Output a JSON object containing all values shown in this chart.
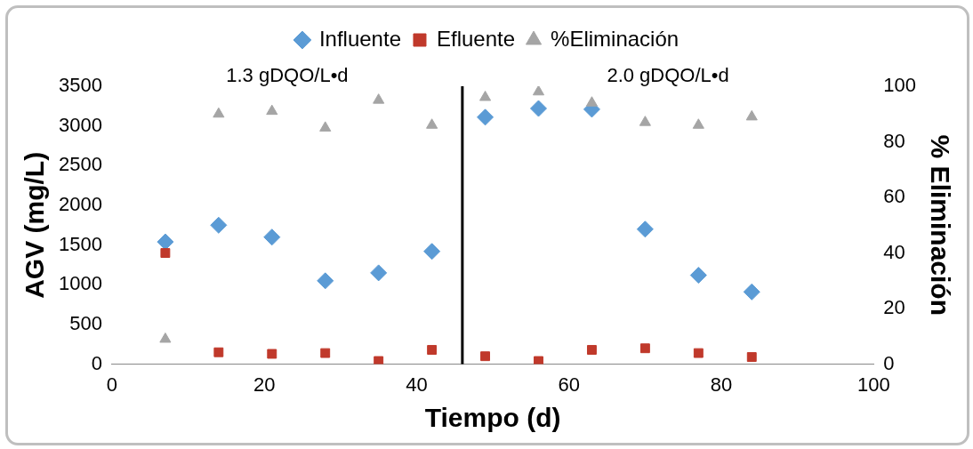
{
  "chart_data": {
    "type": "scatter",
    "xlabel": "Tiempo (d)",
    "ylabel": "AGV (mg/L)",
    "y2label": "% Eliminación",
    "x": [
      7,
      14,
      21,
      28,
      35,
      42,
      49,
      56,
      63,
      70,
      77,
      84
    ],
    "series": [
      {
        "name": "Influente",
        "color": "#5b9bd5",
        "marker": "diamond",
        "values": [
          1540,
          1750,
          1600,
          1050,
          1150,
          1420,
          3110,
          3220,
          3210,
          1700,
          1120,
          910
        ]
      },
      {
        "name": "Efluente",
        "color": "#c0392b",
        "marker": "square",
        "values": [
          1400,
          150,
          130,
          140,
          40,
          180,
          100,
          40,
          180,
          200,
          140,
          90
        ]
      },
      {
        "name": "%Eliminación",
        "color": "#a5a5a5",
        "marker": "triangle",
        "axis": "y2",
        "values": [
          9,
          90,
          91,
          85,
          95,
          86,
          96,
          98,
          94,
          87,
          86,
          89
        ]
      }
    ],
    "xlim": [
      0,
      100
    ],
    "xticks": [
      0,
      20,
      40,
      60,
      80,
      100
    ],
    "ylim": [
      0,
      3500
    ],
    "yticks": [
      0,
      500,
      1000,
      1500,
      2000,
      2500,
      3000,
      3500
    ],
    "y2lim": [
      0,
      100
    ],
    "y2ticks": [
      0,
      20,
      40,
      60,
      80,
      100
    ],
    "ref_lines": [
      {
        "axis": "x",
        "value": 46,
        "color": "#000000"
      }
    ],
    "annotations": [
      "1.3 gDQO/L•d",
      "2.0 gDQO/L•d"
    ],
    "grid": false,
    "legend": "top"
  }
}
